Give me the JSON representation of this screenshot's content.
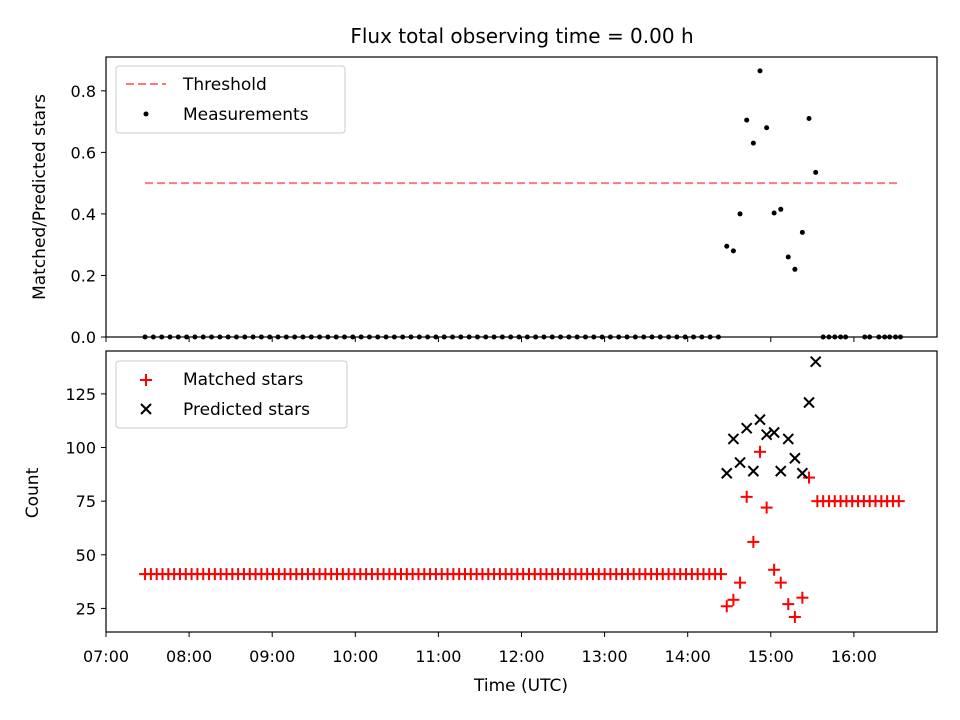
{
  "chart_data": {
    "title": "Flux total observing time = 0.00 h",
    "xlabel": "Time (UTC)",
    "x_ticks": [
      {
        "v": 7,
        "label": "07:00"
      },
      {
        "v": 8,
        "label": "08:00"
      },
      {
        "v": 9,
        "label": "09:00"
      },
      {
        "v": 10,
        "label": "10:00"
      },
      {
        "v": 11,
        "label": "11:00"
      },
      {
        "v": 12,
        "label": "12:00"
      },
      {
        "v": 13,
        "label": "13:00"
      },
      {
        "v": 14,
        "label": "14:00"
      },
      {
        "v": 15,
        "label": "15:00"
      },
      {
        "v": 16,
        "label": "16:00"
      }
    ],
    "xlim": [
      7.0,
      17.0
    ],
    "top": {
      "type": "scatter",
      "ylabel": "Matched/Predicted stars",
      "ylim": [
        0.0,
        0.91
      ],
      "y_ticks": [
        "0.0",
        "0.2",
        "0.4",
        "0.6",
        "0.8"
      ],
      "legend": {
        "threshold": "Threshold",
        "measurements": "Measurements"
      },
      "threshold": {
        "value": 0.5,
        "x_start": 7.47,
        "x_end": 16.56,
        "color": "#ff7777"
      },
      "zero_series": {
        "x_start": 7.47,
        "x_end": 14.4,
        "step": 0.1,
        "y": 0.0,
        "extra_x": [
          15.63,
          15.7,
          15.77,
          15.84,
          15.9,
          16.13,
          16.19,
          16.3,
          16.37,
          16.43,
          16.5,
          16.56
        ]
      },
      "points": [
        [
          14.47,
          0.295
        ],
        [
          14.55,
          0.28
        ],
        [
          14.63,
          0.4
        ],
        [
          14.71,
          0.705
        ],
        [
          14.79,
          0.63
        ],
        [
          14.87,
          0.865
        ],
        [
          14.95,
          0.68
        ],
        [
          15.04,
          0.403
        ],
        [
          15.12,
          0.415
        ],
        [
          15.21,
          0.26
        ],
        [
          15.29,
          0.22
        ],
        [
          15.38,
          0.34
        ],
        [
          15.46,
          0.71
        ],
        [
          15.54,
          0.535
        ]
      ]
    },
    "bottom": {
      "type": "scatter",
      "ylabel": "Count",
      "ylim": [
        14,
        145
      ],
      "y_ticks": [
        "25",
        "50",
        "75",
        "100",
        "125"
      ],
      "legend": {
        "matched": "Matched stars",
        "predicted": "Predicted stars"
      },
      "matched_color": "#ff0000",
      "predicted_color": "#000000",
      "matched_flat_1": {
        "x_start": 7.47,
        "x_end": 14.4,
        "step": 0.07,
        "y": 41
      },
      "matched_flat_2": {
        "x_start": 15.56,
        "x_end": 16.56,
        "step": 0.07,
        "y": 75
      },
      "matched_points": [
        [
          14.47,
          26
        ],
        [
          14.55,
          29
        ],
        [
          14.63,
          37
        ],
        [
          14.71,
          77
        ],
        [
          14.79,
          56
        ],
        [
          14.87,
          98
        ],
        [
          14.95,
          72
        ],
        [
          15.04,
          43
        ],
        [
          15.12,
          37
        ],
        [
          15.21,
          27
        ],
        [
          15.29,
          21
        ],
        [
          15.38,
          30
        ],
        [
          15.46,
          86
        ]
      ],
      "predicted_points": [
        [
          14.47,
          88
        ],
        [
          14.55,
          104
        ],
        [
          14.63,
          93
        ],
        [
          14.71,
          109
        ],
        [
          14.79,
          89
        ],
        [
          14.87,
          113
        ],
        [
          14.95,
          106
        ],
        [
          15.04,
          107
        ],
        [
          15.12,
          89
        ],
        [
          15.21,
          104
        ],
        [
          15.29,
          95
        ],
        [
          15.38,
          88
        ],
        [
          15.46,
          121
        ],
        [
          15.54,
          140
        ]
      ]
    }
  }
}
